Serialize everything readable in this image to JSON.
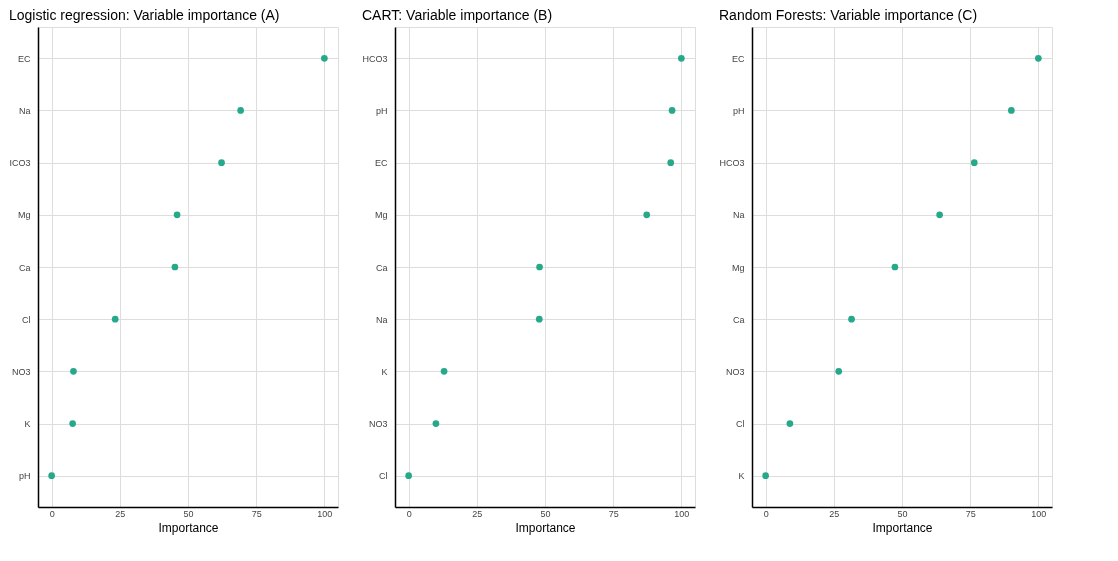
{
  "chart_data": [
    {
      "type": "scatter",
      "orientation": "horizontal",
      "title": "Logistic regression: Variable importance (A)",
      "xlabel": "Importance",
      "categories": [
        "EC",
        "Na",
        "ICO3",
        "Mg",
        "Ca",
        "Cl",
        "NO3",
        "K",
        "pH"
      ],
      "series": [
        {
          "color": "#26a98b",
          "values": [
            100,
            69.3,
            62.3,
            46,
            45.2,
            23.3,
            8,
            7.7,
            0
          ]
        }
      ],
      "xlim": [
        -5,
        105
      ],
      "xticks": [
        0,
        25,
        50,
        75,
        100
      ],
      "grid": true,
      "marker": "circle"
    },
    {
      "type": "scatter",
      "orientation": "horizontal",
      "title": "CART: Variable importance (B)",
      "xlabel": "Importance",
      "categories": [
        "HCO3",
        "pH",
        "EC",
        "Mg",
        "Ca",
        "Na",
        "K",
        "NO3",
        "Cl"
      ],
      "series": [
        {
          "color": "#26a98b",
          "values": [
            100,
            96.6,
            96.1,
            87.3,
            48,
            47.9,
            13,
            10,
            0
          ]
        }
      ],
      "xlim": [
        -5,
        105
      ],
      "xticks": [
        0,
        25,
        50,
        75,
        100
      ],
      "grid": true,
      "marker": "circle"
    },
    {
      "type": "scatter",
      "orientation": "horizontal",
      "title": "Random Forests: Variable importance (C)",
      "xlabel": "Importance",
      "categories": [
        "EC",
        "pH",
        "HCO3",
        "Na",
        "Mg",
        "Ca",
        "NO3",
        "Cl",
        "K"
      ],
      "series": [
        {
          "color": "#26a98b",
          "values": [
            100,
            90.1,
            76.5,
            63.8,
            47.4,
            31.5,
            26.8,
            8.9,
            0
          ]
        }
      ],
      "xlim": [
        -5,
        105
      ],
      "xticks": [
        0,
        25,
        50,
        75,
        100
      ],
      "grid": true,
      "marker": "circle"
    }
  ]
}
